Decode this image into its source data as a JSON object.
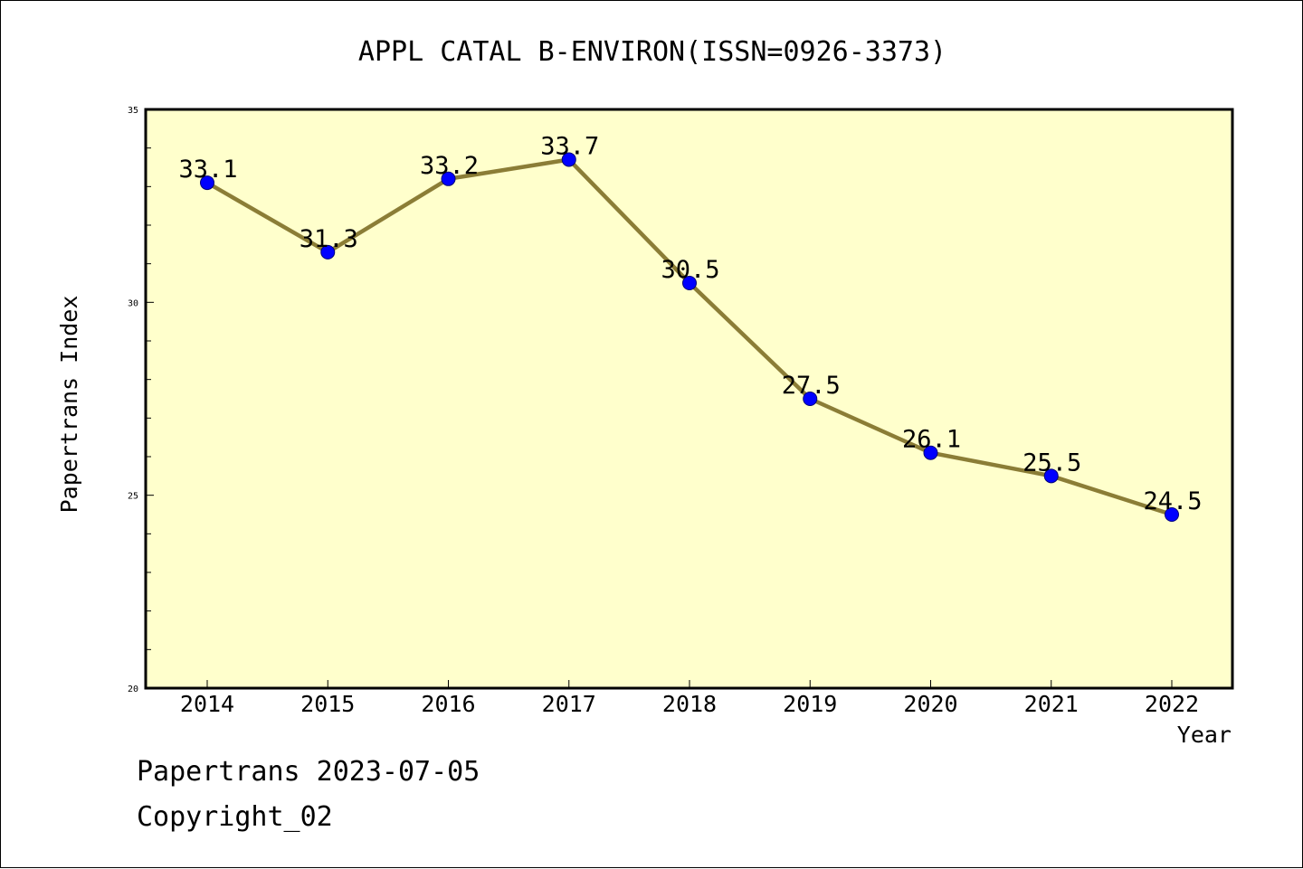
{
  "colors": {
    "plot_background": "#ffffcc",
    "line": "#8b7d36",
    "marker": "#0000ff",
    "marker_edge": "#00007a",
    "axis": "#000000"
  },
  "chart_data": {
    "type": "line",
    "title": "APPL CATAL B-ENVIRON(ISSN=0926-3373)",
    "xlabel": "Year",
    "ylabel": "Papertrans Index",
    "categories": [
      "2014",
      "2015",
      "2016",
      "2017",
      "2018",
      "2019",
      "2020",
      "2021",
      "2022"
    ],
    "series": [
      {
        "values": [
          33.1,
          31.3,
          33.2,
          33.7,
          30.5,
          27.5,
          26.1,
          25.5,
          24.5
        ],
        "labels": [
          "33.1",
          "31.3",
          "33.2",
          "33.7",
          "30.5",
          "27.5",
          "26.1",
          "25.5",
          "24.5"
        ]
      }
    ],
    "ylim": [
      20,
      35
    ],
    "y_major_ticks": [
      "20",
      "25",
      "30",
      "35"
    ],
    "y_minor_step": 1,
    "grid": false,
    "legend": "none"
  },
  "footer": {
    "date_line": "Papertrans 2023-07-05",
    "copyright": "Copyright_02"
  }
}
